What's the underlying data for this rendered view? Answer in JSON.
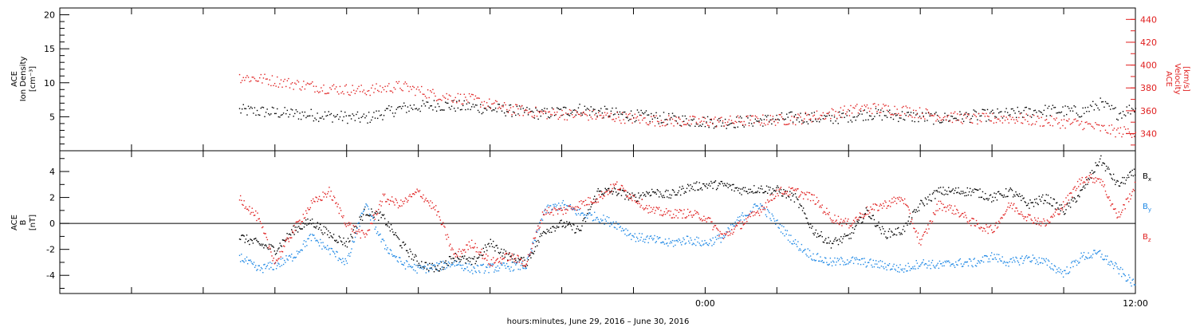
{
  "chart_data": [
    {
      "type": "scatter",
      "panel": "top",
      "ylabel_left": [
        "ACE",
        "Ion Density",
        "[cm⁻³]"
      ],
      "ylabel_right": [
        "ACE",
        "Velocity",
        "[km/s]"
      ],
      "ylim_left": [
        0,
        21
      ],
      "ylim_right": [
        325,
        450
      ],
      "yticks_left": [
        "5",
        "10",
        "15",
        "20"
      ],
      "yticks_right": [
        "340",
        "360",
        "380",
        "400",
        "420",
        "440"
      ],
      "grid": false,
      "series": [
        {
          "axis": "left",
          "color": "#000000",
          "x": [
            -13.0,
            -12.3,
            -11.5,
            -10.5,
            -9.5,
            -8.5,
            -7.5,
            -6.5,
            -5.5,
            -4.5,
            -3.5,
            -2.5,
            -1.5,
            -0.5,
            0.5,
            1.5,
            2.5,
            3.5,
            4.5,
            5.5,
            6.5,
            7.5,
            8.5,
            9.5,
            10.5,
            11.0,
            11.5,
            12.0
          ],
          "y": [
            6.0,
            5.8,
            5.5,
            5.2,
            4.8,
            6.3,
            6.8,
            6.5,
            6.0,
            5.5,
            6.2,
            5.5,
            5.0,
            4.5,
            4.2,
            4.5,
            5.0,
            4.8,
            5.5,
            5.2,
            4.8,
            5.2,
            5.5,
            6.0,
            5.8,
            7.0,
            5.5,
            6.5
          ]
        },
        {
          "axis": "right",
          "color": "#e02020",
          "x": [
            -13.0,
            -12.3,
            -11.5,
            -10.5,
            -9.5,
            -8.5,
            -7.5,
            -6.5,
            -5.5,
            -4.5,
            -3.5,
            -2.5,
            -1.5,
            -0.5,
            0.5,
            1.5,
            2.5,
            3.5,
            4.5,
            5.5,
            6.5,
            7.5,
            8.5,
            9.5,
            10.5,
            11.0,
            11.5,
            12.0
          ],
          "y": [
            390,
            388,
            384,
            380,
            378,
            382,
            374,
            370,
            362,
            358,
            357,
            355,
            352,
            351,
            351,
            352,
            353,
            358,
            363,
            361,
            356,
            353,
            354,
            351,
            349,
            345,
            342,
            342
          ]
        }
      ]
    },
    {
      "type": "scatter",
      "panel": "bottom",
      "ylabel": [
        "ACE",
        "B",
        "[nT]"
      ],
      "ylim": [
        -5.4,
        5.6
      ],
      "yticks": [
        "-4",
        "-2",
        "0",
        "2",
        "4"
      ],
      "zero_line": true,
      "grid": false,
      "series": [
        {
          "name": "B",
          "subscript": "x",
          "color": "#000000",
          "x": [
            -13.0,
            -12.5,
            -12.0,
            -11.5,
            -11.0,
            -10.5,
            -10.0,
            -9.5,
            -9.0,
            -8.5,
            -8.0,
            -7.5,
            -7.0,
            -6.5,
            -6.0,
            -5.5,
            -5.0,
            -4.5,
            -4.0,
            -3.5,
            -3.0,
            -2.5,
            -2.0,
            -1.5,
            -1.0,
            -0.5,
            0.0,
            0.5,
            1.0,
            1.5,
            2.0,
            2.5,
            3.0,
            3.5,
            4.0,
            4.5,
            5.0,
            5.5,
            6.0,
            6.5,
            7.0,
            7.5,
            8.0,
            8.5,
            9.0,
            9.5,
            10.0,
            10.5,
            11.0,
            11.5,
            12.0
          ],
          "y": [
            -1.0,
            -1.5,
            -2.0,
            -0.5,
            0.2,
            -0.8,
            -1.5,
            1.0,
            0.5,
            -1.5,
            -3.0,
            -3.5,
            -2.5,
            -3.0,
            -1.5,
            -2.5,
            -3.0,
            -0.5,
            0.0,
            -0.5,
            2.5,
            2.5,
            2.0,
            2.5,
            2.2,
            2.8,
            3.0,
            3.0,
            2.6,
            2.7,
            2.6,
            2.0,
            -0.5,
            -1.5,
            -1.0,
            1.0,
            -0.8,
            -0.5,
            1.5,
            2.5,
            2.5,
            2.5,
            2.0,
            2.5,
            1.5,
            2.0,
            1.0,
            2.5,
            5.0,
            3.0,
            4.0
          ]
        },
        {
          "name": "B",
          "subscript": "y",
          "color": "#1e88e5",
          "x": [
            -13.0,
            -12.5,
            -12.0,
            -11.5,
            -11.0,
            -10.5,
            -10.0,
            -9.5,
            -9.0,
            -8.5,
            -8.0,
            -7.5,
            -7.0,
            -6.5,
            -6.0,
            -5.5,
            -5.0,
            -4.5,
            -4.0,
            -3.5,
            -3.0,
            -2.5,
            -2.0,
            -1.5,
            -1.0,
            -0.5,
            0.0,
            0.5,
            1.0,
            1.5,
            2.0,
            2.5,
            3.0,
            3.5,
            4.0,
            4.5,
            5.0,
            5.5,
            6.0,
            6.5,
            7.0,
            7.5,
            8.0,
            8.5,
            9.0,
            9.5,
            10.0,
            10.5,
            11.0,
            11.5,
            12.0
          ],
          "y": [
            -2.5,
            -3.5,
            -3.2,
            -2.5,
            -1.0,
            -2.0,
            -3.0,
            1.5,
            -1.5,
            -3.0,
            -3.5,
            -3.3,
            -3.0,
            -3.5,
            -3.4,
            -3.3,
            -3.2,
            1.0,
            1.5,
            0.8,
            0.5,
            0.0,
            -1.0,
            -1.2,
            -1.5,
            -1.2,
            -1.5,
            -1.0,
            0.5,
            1.5,
            0.0,
            -1.5,
            -2.5,
            -3.0,
            -2.8,
            -3.0,
            -3.2,
            -3.5,
            -3.0,
            -3.2,
            -3.0,
            -3.0,
            -2.5,
            -3.0,
            -2.6,
            -3.0,
            -3.8,
            -2.5,
            -2.3,
            -3.5,
            -4.8
          ]
        },
        {
          "name": "B",
          "subscript": "z",
          "color": "#e02020",
          "x": [
            -13.0,
            -12.5,
            -12.0,
            -11.5,
            -11.0,
            -10.5,
            -10.0,
            -9.5,
            -9.0,
            -8.5,
            -8.0,
            -7.5,
            -7.0,
            -6.5,
            -6.0,
            -5.5,
            -5.0,
            -4.5,
            -4.0,
            -3.5,
            -3.0,
            -2.5,
            -2.0,
            -1.5,
            -1.0,
            -0.5,
            0.0,
            0.5,
            1.0,
            1.5,
            2.0,
            2.5,
            3.0,
            3.5,
            4.0,
            4.5,
            5.0,
            5.5,
            6.0,
            6.5,
            7.0,
            7.5,
            8.0,
            8.5,
            9.0,
            9.5,
            10.0,
            10.5,
            11.0,
            11.5,
            12.0
          ],
          "y": [
            2.0,
            0.5,
            -3.0,
            -0.5,
            1.5,
            2.5,
            0.0,
            -1.0,
            2.0,
            1.5,
            2.5,
            1.0,
            -2.5,
            -1.5,
            -3.0,
            -2.5,
            -3.0,
            1.0,
            1.0,
            1.5,
            2.0,
            3.0,
            2.0,
            1.0,
            0.8,
            0.8,
            0.5,
            -1.0,
            0.0,
            1.0,
            2.5,
            2.5,
            2.0,
            0.5,
            0.0,
            1.0,
            1.5,
            2.0,
            -1.5,
            1.5,
            1.0,
            0.0,
            -0.5,
            1.5,
            0.5,
            0.0,
            1.5,
            3.5,
            3.5,
            0.5,
            3.0
          ]
        }
      ]
    }
  ],
  "xaxis": {
    "label": "hours:minutes, June 29, 2016 – June 30, 2016",
    "xlim": [
      -18.0,
      12.0
    ],
    "tick_labels": [
      {
        "x": 0,
        "label": "0:00"
      },
      {
        "x": 12,
        "label": "12:00"
      }
    ],
    "tick_step": 2
  },
  "legend_placement": "right",
  "legend_labels": {
    "bx": {
      "base": "B",
      "sub": "x"
    },
    "by": {
      "base": "B",
      "sub": "y"
    },
    "bz": {
      "base": "B",
      "sub": "z"
    }
  }
}
